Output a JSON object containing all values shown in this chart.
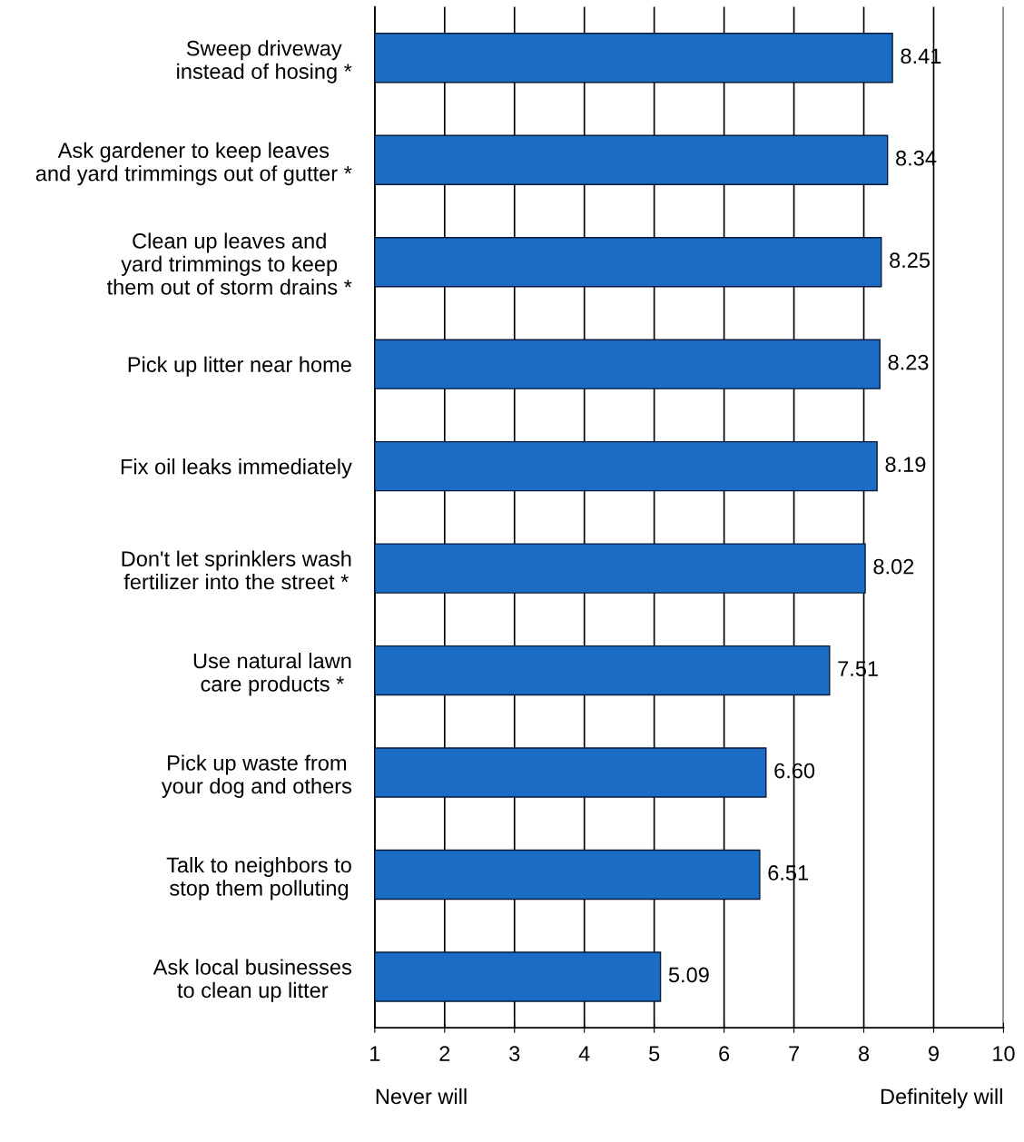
{
  "chart_data": {
    "type": "bar",
    "orientation": "horizontal",
    "categories": [
      "Sweep driveway\ninstead of hosing *",
      "Ask gardener to keep leaves\nand yard trimmings out of gutter *",
      "Clean up leaves and\nyard trimmings to keep\nthem out of storm drains *",
      "Pick up litter near home",
      "Fix oil leaks immediately",
      "Don't let sprinklers wash\nfertilizer into the street *",
      "Use natural lawn\ncare products *",
      "Pick up waste from\nyour dog and others",
      "Talk to neighbors to\nstop them polluting",
      "Ask local businesses\nto clean up litter"
    ],
    "values": [
      8.41,
      8.34,
      8.25,
      8.23,
      8.19,
      8.02,
      7.51,
      6.6,
      6.51,
      5.09
    ],
    "value_labels": [
      "8.41",
      "8.34",
      "8.25",
      "8.23",
      "8.19",
      "8.02",
      "7.51",
      "6.60",
      "6.51",
      "5.09"
    ],
    "color": "#1a6cc4",
    "xlim": [
      1,
      10
    ],
    "xticks": [
      1,
      2,
      3,
      4,
      5,
      6,
      7,
      8,
      9,
      10
    ],
    "grid": "x",
    "legend": false,
    "annotations": [
      "Never will",
      "Definitely will"
    ]
  }
}
